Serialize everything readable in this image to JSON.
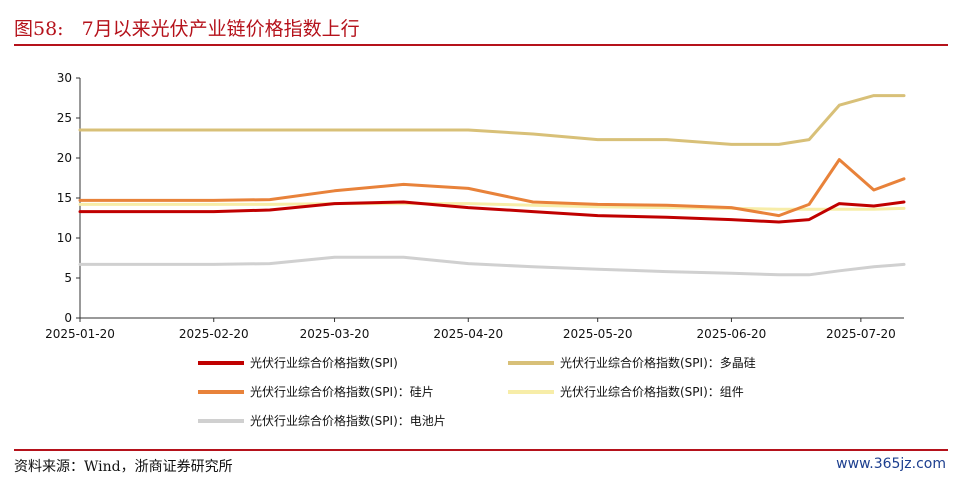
{
  "figure": {
    "number": "图58:",
    "title": "7月以来光伏产业链价格指数上行"
  },
  "source_note": "资料来源：Wind，浙商证券研究所",
  "watermark": "www.365jz.com",
  "colors": {
    "title_red": "#b5121b",
    "axis": "#333333"
  },
  "chart_data": {
    "type": "line",
    "title": "",
    "xlabel": "",
    "ylabel": "",
    "ylim": [
      0,
      30
    ],
    "yticks": [
      0,
      5,
      10,
      15,
      20,
      25,
      30
    ],
    "grid": false,
    "legend_position": "bottom",
    "x": [
      "2025-01-20",
      "2025-02-20",
      "2025-03-05",
      "2025-03-20",
      "2025-04-05",
      "2025-04-20",
      "2025-05-05",
      "2025-05-20",
      "2025-06-05",
      "2025-06-20",
      "2025-07-01",
      "2025-07-08",
      "2025-07-15",
      "2025-07-23",
      "2025-07-30"
    ],
    "xtick_labels": [
      "2025-01-20",
      "2025-02-20",
      "2025-03-20",
      "2025-04-20",
      "2025-05-20",
      "2025-06-20",
      "2025-07-20"
    ],
    "series": [
      {
        "name": "光伏行业综合价格指数(SPI)",
        "color": "#c00000",
        "values": [
          13.3,
          13.3,
          13.5,
          14.3,
          14.5,
          13.8,
          13.3,
          12.8,
          12.6,
          12.3,
          12.0,
          12.3,
          14.3,
          14.0,
          14.5
        ]
      },
      {
        "name": "光伏行业综合价格指数(SPI)：多晶硅",
        "color": "#d8c078",
        "values": [
          23.5,
          23.5,
          23.5,
          23.5,
          23.5,
          23.5,
          23.0,
          22.3,
          22.3,
          21.7,
          21.7,
          22.3,
          26.6,
          27.8,
          27.8
        ]
      },
      {
        "name": "光伏行业综合价格指数(SPI)：硅片",
        "color": "#e8823a",
        "values": [
          14.7,
          14.7,
          14.8,
          15.9,
          16.7,
          16.2,
          14.5,
          14.2,
          14.1,
          13.8,
          12.8,
          14.2,
          19.8,
          16.0,
          17.4
        ]
      },
      {
        "name": "光伏行业综合价格指数(SPI)：组件",
        "color": "#f7eda8",
        "values": [
          14.2,
          14.2,
          14.2,
          14.3,
          14.3,
          14.3,
          14.1,
          13.9,
          13.8,
          13.7,
          13.6,
          13.6,
          13.6,
          13.6,
          13.7
        ]
      },
      {
        "name": "光伏行业综合价格指数(SPI)：电池片",
        "color": "#d0d0d0",
        "values": [
          6.7,
          6.7,
          6.8,
          7.6,
          7.6,
          6.8,
          6.4,
          6.1,
          5.8,
          5.6,
          5.4,
          5.4,
          5.9,
          6.4,
          6.7
        ]
      }
    ]
  }
}
